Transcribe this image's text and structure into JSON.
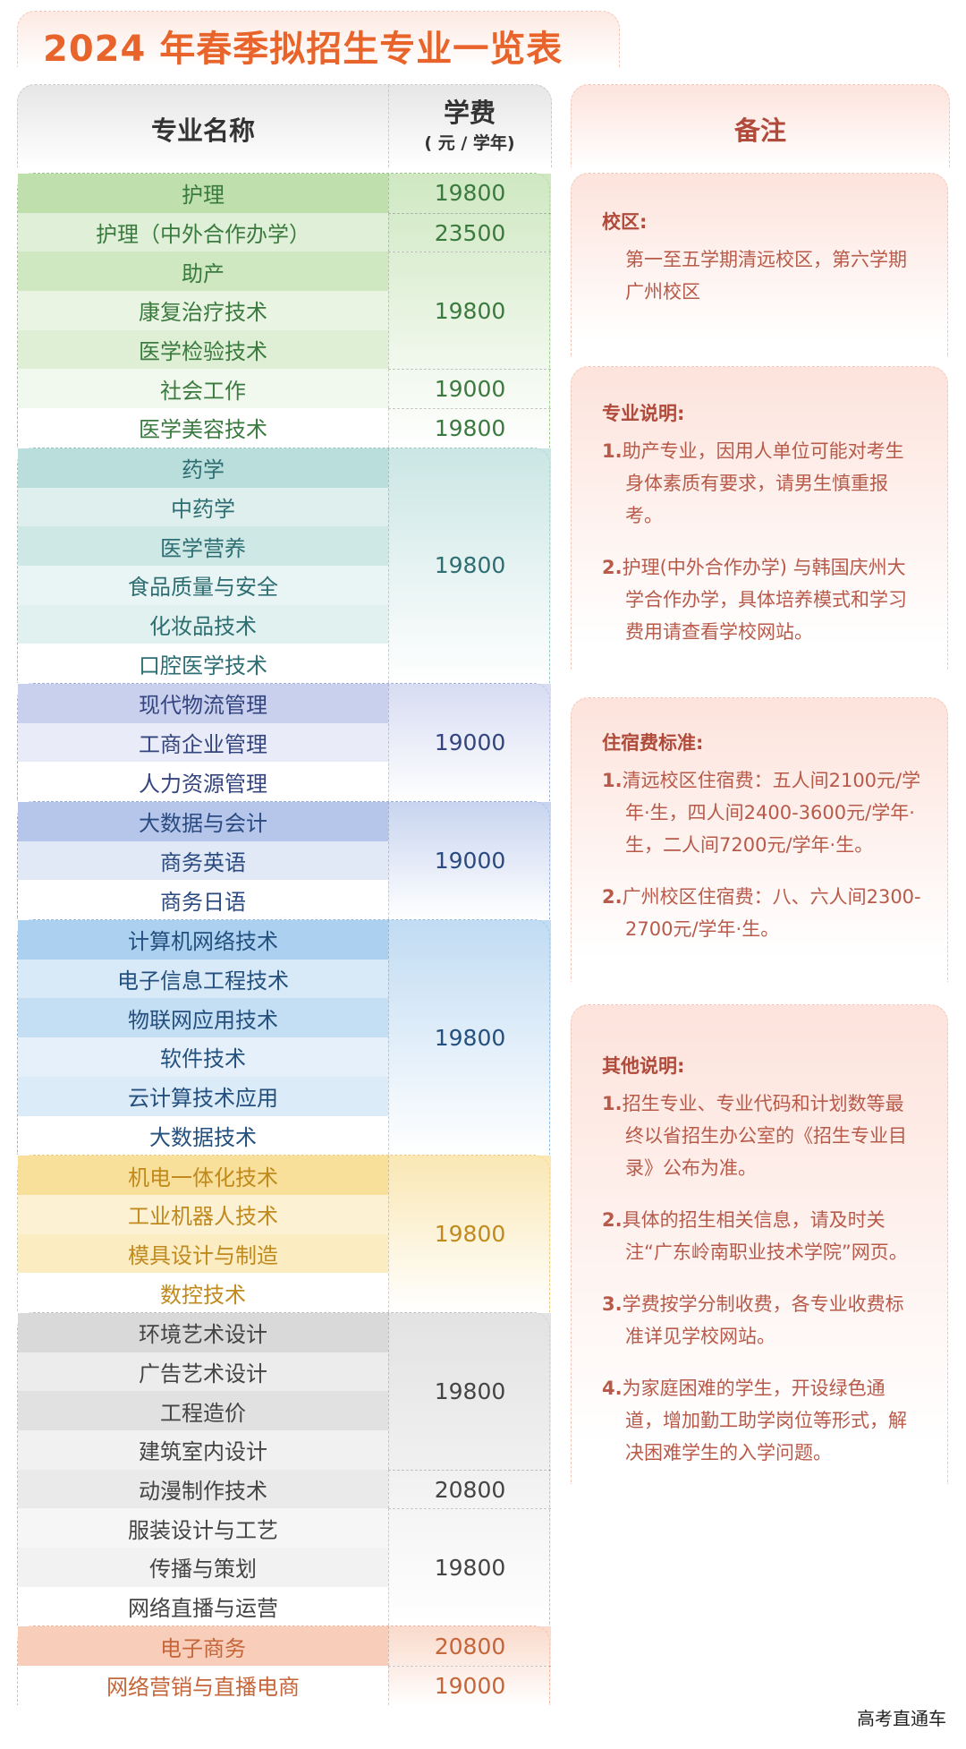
{
  "title": "2024 年春季拟招生专业一览表",
  "header": {
    "name": "专业名称",
    "fee": "学费",
    "fee_unit": "( 元 / 学年)",
    "notes": "备注"
  },
  "groups": [
    {
      "color": "#3b7a3f",
      "bg": "#bfe0ad",
      "border": "#9cc98a",
      "rows": [
        "护理",
        "护理（中外合作办学）",
        "助产",
        "康复治疗技术",
        "医学检验技术",
        "社会工作",
        "医学美容技术"
      ],
      "fees": [
        {
          "value": "19800",
          "span": 1
        },
        {
          "value": "23500",
          "span": 1
        },
        {
          "value": "19800",
          "span": 3
        },
        {
          "value": "19000",
          "span": 1
        },
        {
          "value": "19800",
          "span": 1
        }
      ],
      "fade_rows": 1
    },
    {
      "color": "#2e6e72",
      "bg": "#b9dedb",
      "border": "#93c4c0",
      "rows": [
        "药学",
        "中药学",
        "医学营养",
        "食品质量与安全",
        "化妆品技术",
        "口腔医学技术"
      ],
      "fees": [
        {
          "value": "19800",
          "span": 6
        }
      ]
    },
    {
      "color": "#34447e",
      "bg": "#c9d0ee",
      "border": "#a3aedb",
      "rows": [
        "现代物流管理",
        "工商企业管理",
        "人力资源管理"
      ],
      "fees": [
        {
          "value": "19000",
          "span": 3
        }
      ]
    },
    {
      "color": "#2a4a80",
      "bg": "#b5c6ea",
      "border": "#95abd9",
      "rows": [
        "大数据与会计",
        "商务英语",
        "商务日语"
      ],
      "fees": [
        {
          "value": "19000",
          "span": 3
        }
      ]
    },
    {
      "color": "#24507e",
      "bg": "#acd0ef",
      "border": "#8ab8e0",
      "rows": [
        "计算机网络技术",
        "电子信息工程技术",
        "物联网应用技术",
        "软件技术",
        "云计算技术应用",
        "大数据技术"
      ],
      "fees": [
        {
          "value": "19800",
          "span": 6
        }
      ]
    },
    {
      "color": "#c08a1e",
      "bg": "#f8df9a",
      "border": "#ecc877",
      "rows": [
        "机电一体化技术",
        "工业机器人技术",
        "模具设计与制造",
        "数控技术"
      ],
      "fees": [
        {
          "value": "19800",
          "span": 4
        }
      ]
    },
    {
      "color": "#444444",
      "bg": "#d9d9d9",
      "border": "#bdbdbd",
      "rows": [
        "环境艺术设计",
        "广告艺术设计",
        "工程造价",
        "建筑室内设计",
        "动漫制作技术",
        "服装设计与工艺",
        "传播与策划",
        "网络直播与运营"
      ],
      "fees": [
        {
          "value": "19800",
          "span": 4
        },
        {
          "value": "20800",
          "span": 1
        },
        {
          "value": "19800",
          "span": 3
        }
      ]
    },
    {
      "color": "#c5663a",
      "bg": "#f8cdb9",
      "border": "#efb39a",
      "rows": [
        "电子商务",
        "网络营销与直播电商"
      ],
      "fees": [
        {
          "value": "20800",
          "span": 1
        },
        {
          "value": "19000",
          "span": 1
        }
      ]
    }
  ],
  "notes": {
    "campus": {
      "heading": "校区:",
      "text": "第一至五学期清远校区，第六学期广州校区"
    },
    "major": {
      "heading": "专业说明:",
      "items": [
        {
          "n": "1.",
          "t": "助产专业，因用人单位可能对考生身体素质有要求，请男生慎重报考。"
        },
        {
          "n": "2.",
          "t": "护理(中外合作办学) 与韩国庆州大学合作办学，具体培养模式和学习费用请查看学校网站。"
        }
      ]
    },
    "housing": {
      "heading": "住宿费标准:",
      "items": [
        {
          "n": "1.",
          "t": "清远校区住宿费：五人间2100元/学年·生，四人间2400-3600元/学年·生，二人间7200元/学年·生。"
        },
        {
          "n": "2.",
          "t": "广州校区住宿费：八、六人间2300-2700元/学年·生。"
        }
      ]
    },
    "other": {
      "heading": "其他说明:",
      "items": [
        {
          "n": "1.",
          "t": "招生专业、专业代码和计划数等最终以省招生办公室的《招生专业目录》公布为准。"
        },
        {
          "n": "2.",
          "t": "具体的招生相关信息，请及时关注“广东岭南职业技术学院”网页。"
        },
        {
          "n": "3.",
          "t": "学费按学分制收费，各专业收费标准详见学校网站。"
        },
        {
          "n": "4.",
          "t": "为家庭困难的学生，开设绿色通道，增加勤工助学岗位等形式，解决困难学生的入学问题。"
        }
      ]
    }
  },
  "watermark": "高考直通车"
}
